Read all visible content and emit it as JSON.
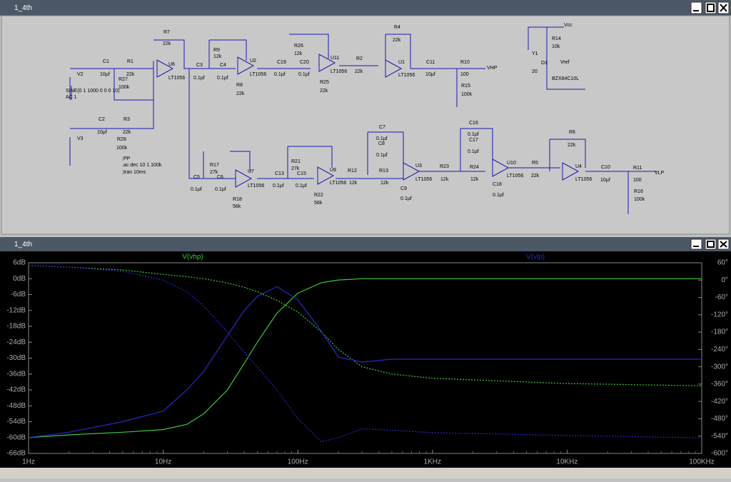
{
  "windows": [
    {
      "title": "1_4th"
    },
    {
      "title": "1_4th"
    }
  ],
  "schematic": {
    "labels": [
      "V2",
      "SINE(0 1 1000 0 0 0 10)",
      "AC 1",
      "C1",
      "10µf",
      "R1",
      "22k",
      "R27",
      "100k",
      "R7",
      "22k",
      "U6",
      "LT1056",
      "C3",
      "0.1µf",
      "R9",
      "12k",
      "C4",
      "0.1µf",
      "R8",
      "22k",
      "U2",
      "LT1056",
      "C19",
      "0.1µf",
      "C20",
      "0.1µf",
      "R26",
      "12k",
      "R25",
      "22k",
      "U11",
      "LT1056",
      "R2",
      "22k",
      "R4",
      "22k",
      "U1",
      "LT1056",
      "C11",
      "10µf",
      "R10",
      "100",
      "VHP",
      "R15",
      "100k",
      "Vcc",
      "R14",
      "10k",
      "Vref",
      "Y1",
      "20",
      "D1",
      "BZX84C10L",
      "V3",
      "C2",
      "10µf",
      "R3",
      "22k",
      "R28",
      "100k",
      ";PP",
      ".ac dec 10 1 100k",
      ";tran 10ms",
      "C5",
      "0.1µf",
      "R17",
      "27k",
      "C6",
      "0.1µf",
      "R18",
      "56k",
      "U7",
      "LT1056",
      "C13",
      "0.1µf",
      "R21",
      "27k",
      "C15",
      "0.1µf",
      "R22",
      "56k",
      "U9",
      "LT1056",
      "R12",
      "12k",
      "C7",
      "0.1µf",
      "C8",
      "0.1µf",
      "R13",
      "12k",
      "C9",
      "0.1µf",
      "U3",
      "LT1056",
      "R23",
      "12k",
      "C16",
      "0.1µf",
      "C17",
      "0.1µf",
      "R24",
      "12k",
      "C18",
      "0.1µf",
      "U10",
      "LT1056",
      "R5",
      "22k",
      "R6",
      "22k",
      "U4",
      "LT1056",
      "C10",
      "10µf",
      "R11",
      "100",
      "VLP",
      "R16",
      "100k"
    ]
  },
  "chart_data": {
    "type": "line",
    "x_log": true,
    "x": [
      1,
      2,
      5,
      10,
      15,
      20,
      30,
      40,
      50,
      70,
      100,
      150,
      200,
      300,
      500,
      1000,
      10000,
      100000
    ],
    "series": [
      {
        "name": "V(vhp)",
        "color": "#3cc83c",
        "values": [
          -60,
          -59,
          -58,
          -57,
          -55,
          -51,
          -42,
          -32,
          -24,
          -13,
          -5.5,
          -1.5,
          -0.5,
          0,
          0,
          0,
          0,
          0
        ],
        "phase": [
          50,
          45,
          35,
          20,
          12,
          5,
          -10,
          -25,
          -40,
          -70,
          -110,
          -180,
          -240,
          -300,
          -325,
          -340,
          -358,
          -366
        ]
      },
      {
        "name": "V(vlp)",
        "color": "#2828c8",
        "values": [
          -60,
          -58,
          -54,
          -50,
          -42,
          -35,
          -21.5,
          -12,
          -6.7,
          -3,
          -8,
          -20,
          -29.6,
          -31.5,
          -30.4,
          -30.4,
          -30.4,
          -30.4
        ],
        "phase": [
          50,
          45,
          30,
          0,
          -40,
          -90,
          -180,
          -250,
          -300,
          -380,
          -480,
          -560,
          -545,
          -515,
          -520,
          -528,
          -538,
          -546
        ]
      }
    ],
    "xlim": [
      1,
      100000
    ],
    "xticks": [
      {
        "value": 1,
        "label": "1Hz"
      },
      {
        "value": 10,
        "label": "10Hz"
      },
      {
        "value": 100,
        "label": "100Hz"
      },
      {
        "value": 1000,
        "label": "1KHz"
      },
      {
        "value": 10000,
        "label": "10KHz"
      },
      {
        "value": 100000,
        "label": "100KHz"
      }
    ],
    "ylim": [
      6,
      -66
    ],
    "yticks": [
      {
        "value": 6,
        "label": "6dB"
      },
      {
        "value": 0,
        "label": "0dB"
      },
      {
        "value": -6,
        "label": "-6dB"
      },
      {
        "value": -12,
        "label": "-12dB"
      },
      {
        "value": -18,
        "label": "-18dB"
      },
      {
        "value": -24,
        "label": "-24dB"
      },
      {
        "value": -30,
        "label": "-30dB"
      },
      {
        "value": -36,
        "label": "-36dB"
      },
      {
        "value": -42,
        "label": "-42dB"
      },
      {
        "value": -48,
        "label": "-48dB"
      },
      {
        "value": -54,
        "label": "-54dB"
      },
      {
        "value": -60,
        "label": "-60dB"
      },
      {
        "value": -66,
        "label": "-66dB"
      }
    ],
    "y2lim": [
      60,
      -600
    ],
    "y2ticks": [
      {
        "value": 60,
        "label": "60°"
      },
      {
        "value": 0,
        "label": "0°"
      },
      {
        "value": -60,
        "label": "-60°"
      },
      {
        "value": -120,
        "label": "-120°"
      },
      {
        "value": -180,
        "label": "-180°"
      },
      {
        "value": -240,
        "label": "-240°"
      },
      {
        "value": -300,
        "label": "-300°"
      },
      {
        "value": -360,
        "label": "-360°"
      },
      {
        "value": -420,
        "label": "-420°"
      },
      {
        "value": -480,
        "label": "-480°"
      },
      {
        "value": -540,
        "label": "-540°"
      },
      {
        "value": -600,
        "label": "-600°"
      }
    ],
    "grid": false
  }
}
